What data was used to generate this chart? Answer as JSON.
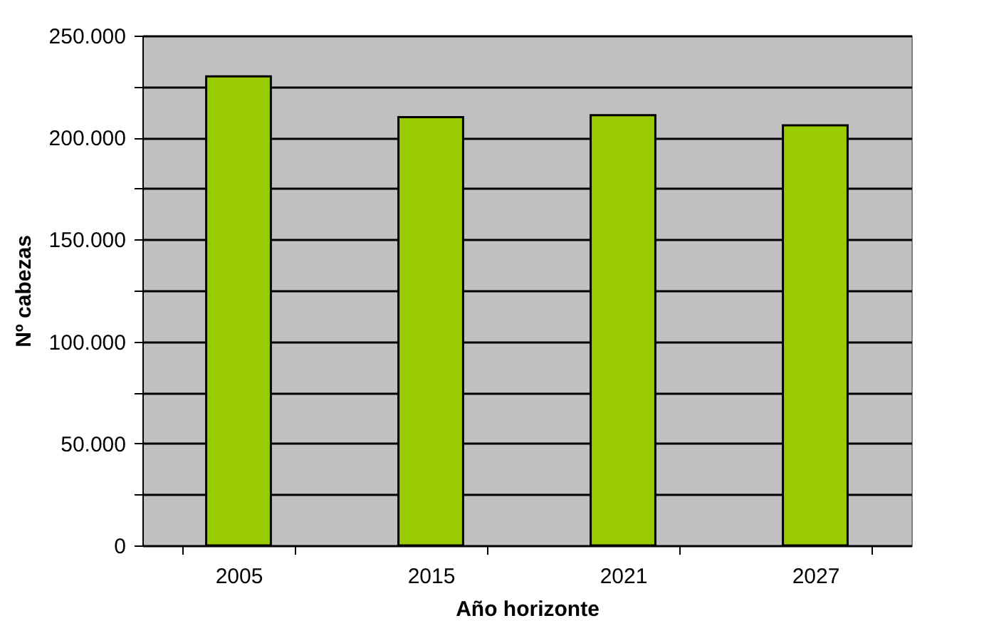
{
  "chart_data": {
    "type": "bar",
    "xlabel": "Año horizonte",
    "ylabel": "Nº cabezas",
    "categories": [
      "2005",
      "2015",
      "2021",
      "2027"
    ],
    "values": [
      230000,
      210000,
      211000,
      206000
    ],
    "color": "#99cc00",
    "ylim": [
      0,
      250000
    ],
    "yticks": [
      {
        "value": 0,
        "label": "0"
      },
      {
        "value": 25000,
        "label": null
      },
      {
        "value": 50000,
        "label": "50.000"
      },
      {
        "value": 75000,
        "label": null
      },
      {
        "value": 100000,
        "label": "100.000"
      },
      {
        "value": 125000,
        "label": null
      },
      {
        "value": 150000,
        "label": "150.000"
      },
      {
        "value": 175000,
        "label": null
      },
      {
        "value": 200000,
        "label": "200.000"
      },
      {
        "value": 225000,
        "label": null
      },
      {
        "value": 250000,
        "label": "250.000"
      }
    ],
    "grid": "y"
  }
}
